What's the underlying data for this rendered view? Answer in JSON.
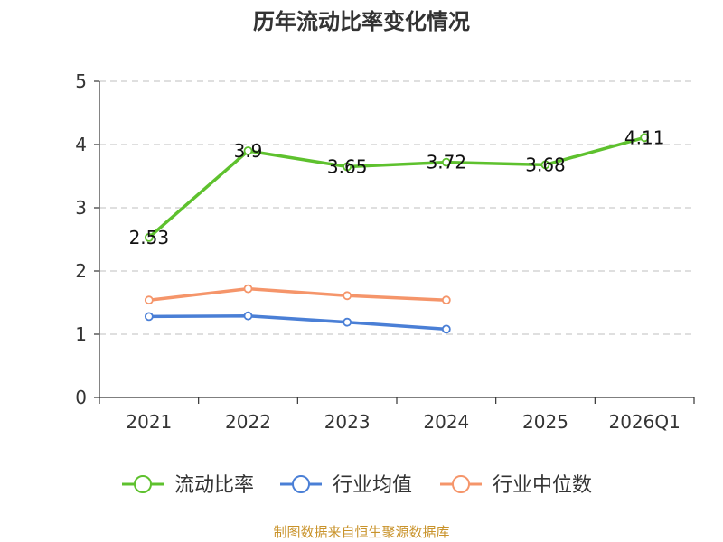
{
  "chart_data": {
    "type": "line",
    "title": "历年流动比率变化情况",
    "categories": [
      "2021",
      "2022",
      "2023",
      "2024",
      "2025",
      "2026Q1"
    ],
    "ylim": [
      0,
      5
    ],
    "yticks": [
      "0",
      "1",
      "2",
      "3",
      "4",
      "5"
    ],
    "grid": true,
    "legend_position": "bottom",
    "series": [
      {
        "name": "流动比率",
        "color": "#5ec12e",
        "values": [
          2.53,
          3.9,
          3.65,
          3.72,
          3.68,
          4.11
        ],
        "labels": true
      },
      {
        "name": "行业均值",
        "color": "#4a7fd6",
        "values": [
          1.28,
          1.29,
          1.19,
          1.08,
          null,
          null
        ],
        "labels": false
      },
      {
        "name": "行业中位数",
        "color": "#f5956a",
        "values": [
          1.54,
          1.72,
          1.61,
          1.54,
          null,
          null
        ],
        "labels": false
      }
    ]
  },
  "source_text": "制图数据来自恒生聚源数据库"
}
